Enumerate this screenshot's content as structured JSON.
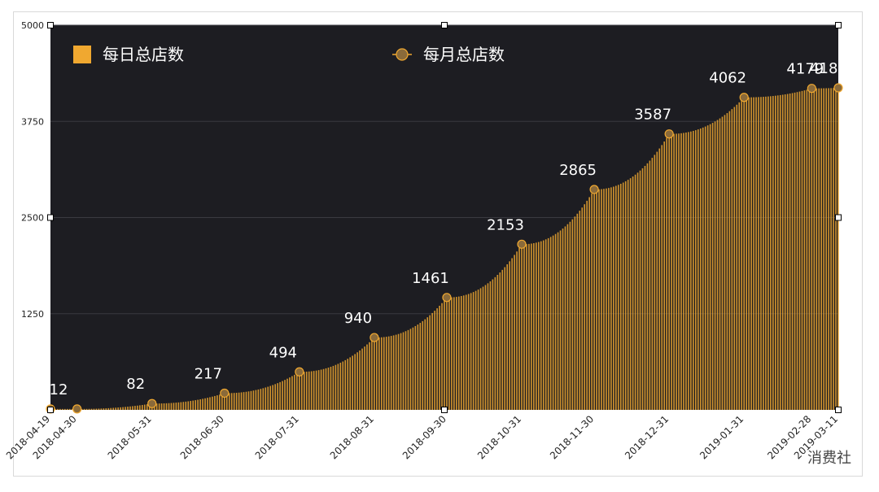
{
  "chart_data": {
    "type": "bar",
    "title": "",
    "xlabel": "",
    "ylabel": "",
    "ylim": [
      0,
      5000
    ],
    "y_ticks": [
      "5000",
      "3750",
      "2500",
      "1250"
    ],
    "grid": true,
    "legend_position": "top",
    "x_tick_labels": [
      "2018-04-19",
      "2018-04-30",
      "2018-05-31",
      "2018-06-30",
      "2018-07-31",
      "2018-08-31",
      "2018-09-30",
      "2018-10-31",
      "2018-11-30",
      "2018-12-31",
      "2019-01-31",
      "2019-02-28",
      "2019-03-11"
    ],
    "series": [
      {
        "name": "每日总店数",
        "kind": "bar",
        "color": "#f0a830",
        "x": [
          "2018-04-19",
          "2018-04-30",
          "2018-05-31",
          "2018-06-30",
          "2018-07-31",
          "2018-08-31",
          "2018-09-30",
          "2018-10-31",
          "2018-11-30",
          "2018-12-31",
          "2019-01-31",
          "2019-02-28",
          "2019-03-11"
        ],
        "values": [
          12,
          12,
          82,
          217,
          494,
          940,
          1461,
          2153,
          2865,
          3587,
          4062,
          4179,
          4186
        ]
      },
      {
        "name": "每月总店数",
        "kind": "line-markers",
        "color": "#8a6a3a",
        "x": [
          "2018-04-19",
          "2018-04-30",
          "2018-05-31",
          "2018-06-30",
          "2018-07-31",
          "2018-08-31",
          "2018-09-30",
          "2018-10-31",
          "2018-11-30",
          "2018-12-31",
          "2019-01-31",
          "2019-02-28",
          "2019-03-11"
        ],
        "values": [
          12,
          12,
          82,
          217,
          494,
          940,
          1461,
          2153,
          2865,
          3587,
          4062,
          4179,
          4186
        ]
      }
    ],
    "data_labels": [
      {
        "x": "2018-04-19",
        "text": "12"
      },
      {
        "x": "2018-05-31",
        "text": "82"
      },
      {
        "x": "2018-06-30",
        "text": "217"
      },
      {
        "x": "2018-07-31",
        "text": "494"
      },
      {
        "x": "2018-08-31",
        "text": "940"
      },
      {
        "x": "2018-09-30",
        "text": "1461"
      },
      {
        "x": "2018-10-31",
        "text": "2153"
      },
      {
        "x": "2018-11-30",
        "text": "2865"
      },
      {
        "x": "2018-12-31",
        "text": "3587"
      },
      {
        "x": "2019-01-31",
        "text": "4062"
      },
      {
        "x": "2019-02-28",
        "text": "4179"
      },
      {
        "x": "2019-03-11",
        "text": "4186"
      }
    ]
  },
  "watermark": "消费社",
  "colors": {
    "plot_background": "#1d1d22",
    "bar": "#f0a830",
    "marker": "#8a6a3a",
    "marker_stroke": "#f0a830"
  }
}
